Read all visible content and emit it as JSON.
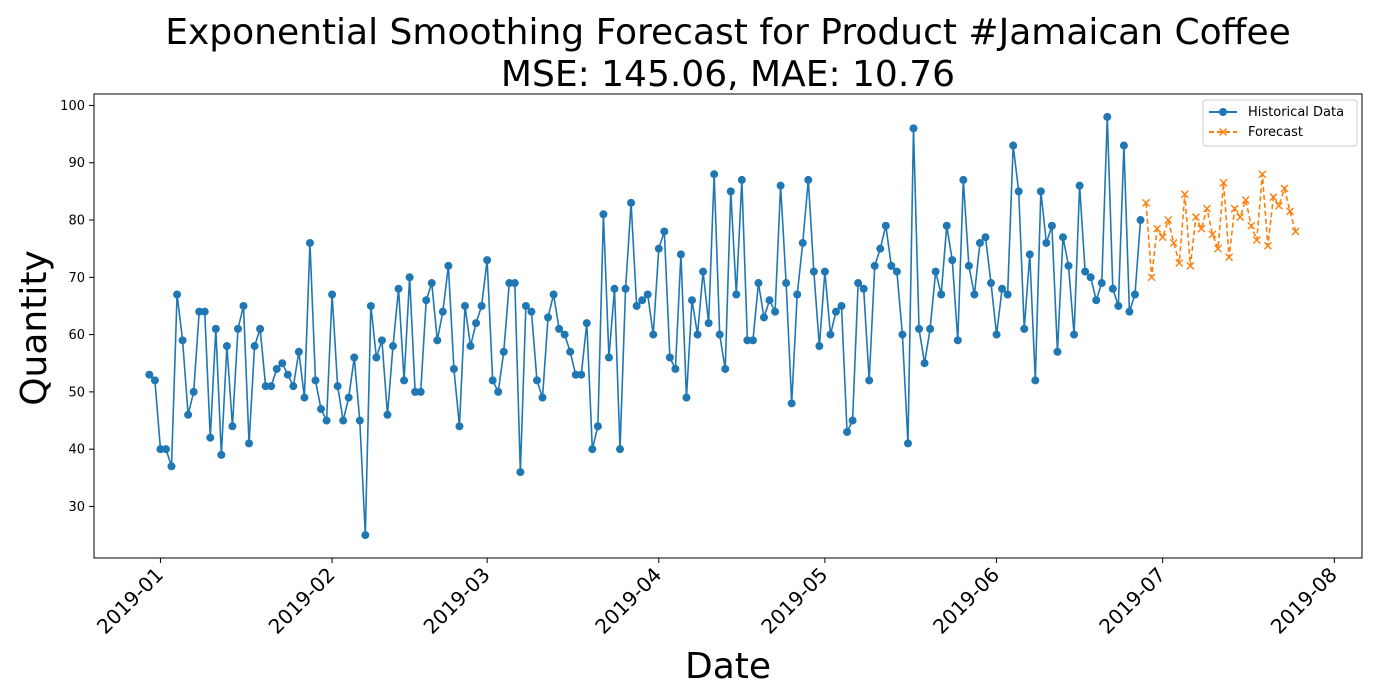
{
  "colors": {
    "historical": "#1f77b4",
    "forecast": "#ff7f0e"
  },
  "chart_data": {
    "type": "line",
    "title": "Exponential Smoothing Forecast for Product #Jamaican Coffee",
    "subtitle": "MSE: 145.06, MAE: 10.76",
    "xlabel": "Date",
    "ylabel": "Quantity",
    "ylim": [
      21,
      102
    ],
    "xlim": [
      "2018-12-20",
      "2019-08-06"
    ],
    "yticks": [
      30,
      40,
      50,
      60,
      70,
      80,
      90,
      100
    ],
    "xticks": [
      "2019-01",
      "2019-02",
      "2019-03",
      "2019-04",
      "2019-05",
      "2019-06",
      "2019-07",
      "2019-08"
    ],
    "xtick_dates": [
      "2019-01-01",
      "2019-02-01",
      "2019-03-01",
      "2019-04-01",
      "2019-05-01",
      "2019-06-01",
      "2019-07-01",
      "2019-08-01"
    ],
    "grid": false,
    "legend_position": "top-right",
    "series": [
      {
        "name": "Historical Data",
        "style": "solid-circle",
        "start_date": "2018-12-30",
        "values": [
          53,
          52,
          40,
          40,
          37,
          67,
          59,
          46,
          50,
          64,
          64,
          42,
          61,
          39,
          58,
          44,
          61,
          65,
          41,
          58,
          61,
          51,
          51,
          54,
          55,
          53,
          51,
          57,
          49,
          76,
          52,
          47,
          45,
          67,
          51,
          45,
          49,
          56,
          45,
          25,
          65,
          56,
          59,
          46,
          58,
          68,
          52,
          70,
          50,
          50,
          66,
          69,
          59,
          64,
          72,
          54,
          44,
          65,
          58,
          62,
          65,
          73,
          52,
          50,
          57,
          69,
          69,
          36,
          65,
          64,
          52,
          49,
          63,
          67,
          61,
          60,
          57,
          53,
          53,
          62,
          40,
          44,
          81,
          56,
          68,
          40,
          68,
          83,
          65,
          66,
          67,
          60,
          75,
          78,
          56,
          54,
          74,
          49,
          66,
          60,
          71,
          62,
          88,
          60,
          54,
          85,
          67,
          87,
          59,
          59,
          69,
          63,
          66,
          64,
          86,
          69,
          48,
          67,
          76,
          87,
          71,
          58,
          71,
          60,
          64,
          65,
          43,
          45,
          69,
          68,
          52,
          72,
          75,
          79,
          72,
          71,
          60,
          41,
          96,
          61,
          55,
          61,
          71,
          67,
          79,
          73,
          59,
          87,
          72,
          67,
          76,
          77,
          69,
          60,
          68,
          67,
          93,
          85,
          61,
          74,
          52,
          85,
          76,
          79,
          57,
          77,
          72,
          60,
          86,
          71,
          70,
          66,
          69,
          98,
          68,
          65,
          93,
          64,
          67,
          80
        ]
      },
      {
        "name": "Forecast",
        "style": "dashed-x",
        "start_date": "2019-06-28",
        "values": [
          83,
          70,
          78.5,
          77,
          80,
          76,
          72.5,
          84.5,
          72,
          80.5,
          78.5,
          82,
          77.5,
          75,
          86.5,
          73.5,
          82,
          80.5,
          83.5,
          79,
          76.5,
          88,
          75.5,
          84,
          82.5,
          85.5,
          81.5,
          78
        ]
      }
    ]
  }
}
